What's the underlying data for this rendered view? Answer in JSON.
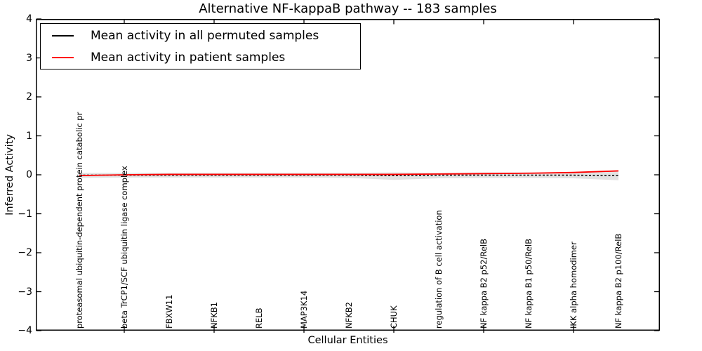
{
  "figure": {
    "title": "Alternative NF-kappaB pathway -- 183 samples",
    "xlabel": "Cellular Entities",
    "ylabel": "Inferred Activity"
  },
  "axes": {
    "y_tick_labels": [
      "4",
      "3",
      "2",
      "1",
      "0",
      "−1",
      "−2",
      "−3",
      "−4"
    ],
    "y_tick_values": [
      4,
      3,
      2,
      1,
      0,
      -1,
      -2,
      -3,
      -4
    ]
  },
  "chart_data": {
    "type": "line",
    "title": "Alternative NF-kappaB pathway -- 183 samples",
    "xlabel": "Cellular Entities",
    "ylabel": "Inferred Activity",
    "ylim": [
      -4,
      4
    ],
    "yticks": [
      4,
      3,
      2,
      1,
      0,
      -1,
      -2,
      -3,
      -4
    ],
    "grid": false,
    "legend_position": "upper left",
    "categories": [
      "proteasomal ubiquitin-dependent protein catabolic pr",
      "beta TrCP1/SCF ubiquitin ligase complex",
      "FBXW11",
      "NFKB1",
      "RELB",
      "MAP3K14",
      "NFKB2",
      "CHUK",
      "regulation of B cell activation",
      "NF kappa B2 p52/RelB",
      "NF kappa B1 p50/RelB",
      "IKK alpha homodimer",
      "NF kappa B2 p100/RelB"
    ],
    "x_axis_tick_indices": [
      1,
      3,
      5,
      7,
      9,
      11
    ],
    "series": [
      {
        "name": "Mean activity in all permuted samples",
        "color": "#000000",
        "linestyle": "dashed",
        "values": [
          -0.01,
          -0.01,
          -0.01,
          -0.01,
          -0.01,
          -0.01,
          -0.01,
          -0.02,
          -0.01,
          -0.01,
          -0.01,
          -0.01,
          -0.02
        ]
      },
      {
        "name": "Mean activity in patient samples",
        "color": "#ff0000",
        "linestyle": "solid",
        "values": [
          -0.02,
          0.0,
          0.01,
          0.01,
          0.01,
          0.01,
          0.01,
          0.01,
          0.02,
          0.03,
          0.04,
          0.06,
          0.1
        ]
      }
    ],
    "band": {
      "description": "spread of permuted sample activity",
      "color": "#e2e2e2",
      "upper": [
        0.05,
        0.05,
        0.05,
        0.05,
        0.05,
        0.05,
        0.05,
        0.06,
        0.05,
        0.06,
        0.06,
        0.07,
        0.11
      ],
      "lower": [
        -0.08,
        -0.07,
        -0.07,
        -0.07,
        -0.07,
        -0.07,
        -0.08,
        -0.13,
        -0.09,
        -0.08,
        -0.08,
        -0.09,
        -0.14
      ]
    }
  }
}
